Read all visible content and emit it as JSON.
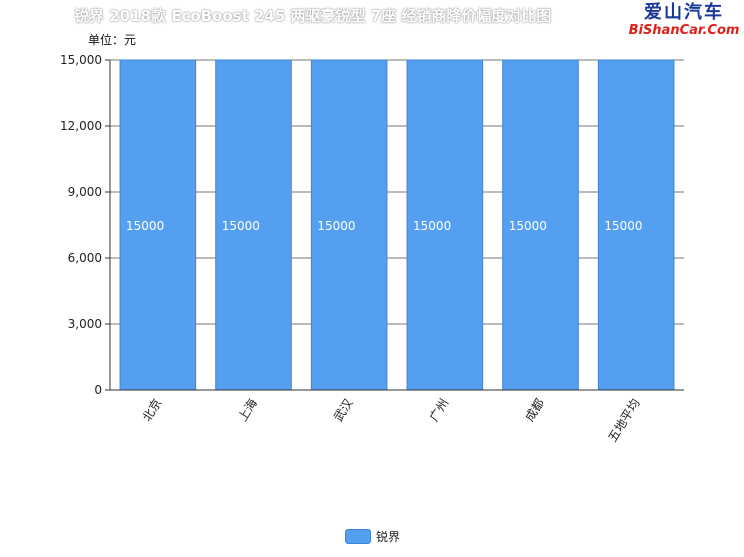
{
  "title": "锐界 2018款 EcoBoost 245 两驱豪锐型 7座 经销商降价幅度对比图",
  "watermark": {
    "text_cn": "爱山汽车",
    "text_en": "BiShanCar.Com"
  },
  "colors": {
    "bar": "#559ff0",
    "bar_edge": "#3f85d6",
    "axis": "#333333",
    "grid": "#777777"
  },
  "chart_data": {
    "type": "bar",
    "unit_label": "单位：元",
    "categories": [
      "北京",
      "上海",
      "武汉",
      "广州",
      "成都",
      "五地平均"
    ],
    "series": [
      {
        "name": "锐界",
        "values": [
          15000,
          15000,
          15000,
          15000,
          15000,
          15000
        ]
      }
    ],
    "ylim": [
      0,
      15000
    ],
    "yticks": [
      0,
      3000,
      6000,
      9000,
      12000,
      15000
    ],
    "ytick_labels": [
      "0",
      "3,000",
      "6,000",
      "9,000",
      "12,000",
      "15,000"
    ],
    "data_labels": [
      "15000",
      "15000",
      "15000",
      "15000",
      "15000",
      "15000"
    ],
    "grid": true,
    "legend_position": "bottom"
  }
}
